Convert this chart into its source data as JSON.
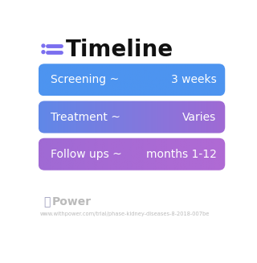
{
  "title": "Timeline",
  "title_fontsize": 20,
  "title_fontweight": "bold",
  "bg_color": "#ffffff",
  "rows": [
    {
      "left_text": "Screening ~",
      "right_text": "3 weeks"
    },
    {
      "left_text": "Treatment ~",
      "right_text": "Varies"
    },
    {
      "left_text": "Follow ups ~",
      "right_text": "months 1-12"
    }
  ],
  "box_colors": [
    [
      "#4d94f0",
      "#4d94f0"
    ],
    [
      "#6088e8",
      "#a06ad4"
    ],
    [
      "#a06ad4",
      "#b06ad4"
    ]
  ],
  "icon_color": "#7b6fef",
  "footer_logo_text": "Power",
  "footer_url": "www.withpower.com/trial/phase-kidney-diseases-8-2018-007be",
  "footer_color": "#bbbbbb",
  "footer_icon_color": "#9b9bbb"
}
